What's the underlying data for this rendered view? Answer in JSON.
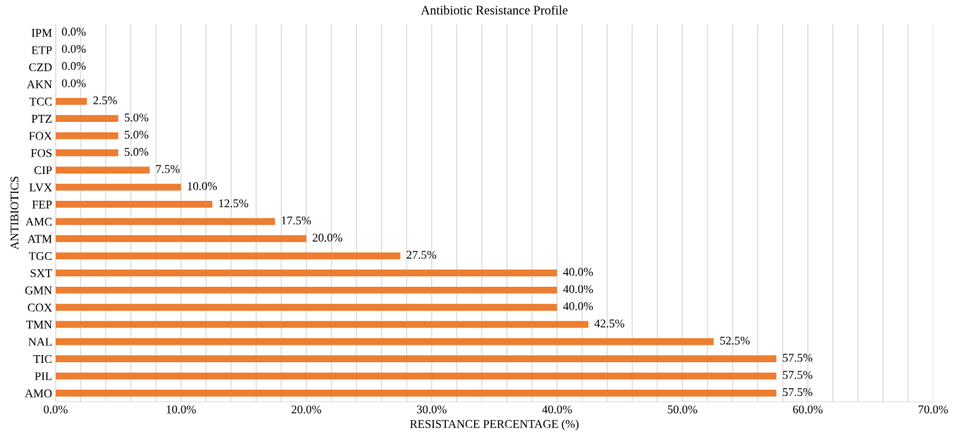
{
  "chart_data": {
    "type": "bar",
    "orientation": "horizontal",
    "title": "Antibiotic Resistance Profile",
    "xlabel": "RESISTANCE PERCENTAGE (%)",
    "ylabel": "ANTIBIOTICS",
    "categories": [
      "IPM",
      "ETP",
      "CZD",
      "AKN",
      "TCC",
      "PTZ",
      "FOX",
      "FOS",
      "CIP",
      "LVX",
      "FEP",
      "AMC",
      "ATM",
      "TGC",
      "SXT",
      "GMN",
      "COX",
      "TMN",
      "NAL",
      "TIC",
      "PIL",
      "AMO"
    ],
    "values": [
      0,
      0,
      0,
      0,
      2.5,
      5,
      5,
      5,
      7.5,
      10,
      12.5,
      17.5,
      20,
      27.5,
      40,
      40,
      40,
      42.5,
      52.5,
      57.5,
      57.5,
      57.5
    ],
    "value_labels": [
      "0.0%",
      "0.0%",
      "0.0%",
      "0.0%",
      "2.5%",
      "5.0%",
      "5.0%",
      "5.0%",
      "7.5%",
      "10.0%",
      "12.5%",
      "17.5%",
      "20.0%",
      "27.5%",
      "40.0%",
      "40.0%",
      "40.0%",
      "42.5%",
      "52.5%",
      "57.5%",
      "57.5%",
      "57.5%"
    ],
    "color": "#ed7d31",
    "xlim": [
      0,
      70
    ],
    "xticks": [
      {
        "value": 0,
        "label": "0.0%"
      },
      {
        "value": 2,
        "label": null
      },
      {
        "value": 4,
        "label": null
      },
      {
        "value": 6,
        "label": null
      },
      {
        "value": 8,
        "label": null
      },
      {
        "value": 10,
        "label": "10.0%"
      },
      {
        "value": 12,
        "label": null
      },
      {
        "value": 14,
        "label": null
      },
      {
        "value": 16,
        "label": null
      },
      {
        "value": 18,
        "label": null
      },
      {
        "value": 20,
        "label": "20.0%"
      },
      {
        "value": 22,
        "label": null
      },
      {
        "value": 24,
        "label": null
      },
      {
        "value": 26,
        "label": null
      },
      {
        "value": 28,
        "label": null
      },
      {
        "value": 30,
        "label": "30.0%"
      },
      {
        "value": 32,
        "label": null
      },
      {
        "value": 34,
        "label": null
      },
      {
        "value": 36,
        "label": null
      },
      {
        "value": 38,
        "label": null
      },
      {
        "value": 40,
        "label": "40.0%"
      },
      {
        "value": 42,
        "label": null
      },
      {
        "value": 44,
        "label": null
      },
      {
        "value": 46,
        "label": null
      },
      {
        "value": 48,
        "label": null
      },
      {
        "value": 50,
        "label": "50.0%"
      },
      {
        "value": 52,
        "label": null
      },
      {
        "value": 54,
        "label": null
      },
      {
        "value": 56,
        "label": null
      },
      {
        "value": 58,
        "label": null
      },
      {
        "value": 60,
        "label": "60.0%"
      },
      {
        "value": 62,
        "label": null
      },
      {
        "value": 64,
        "label": null
      },
      {
        "value": 66,
        "label": null
      },
      {
        "value": 68,
        "label": null
      },
      {
        "value": 70,
        "label": "70.0%"
      }
    ],
    "grid": "x",
    "legend": false
  }
}
